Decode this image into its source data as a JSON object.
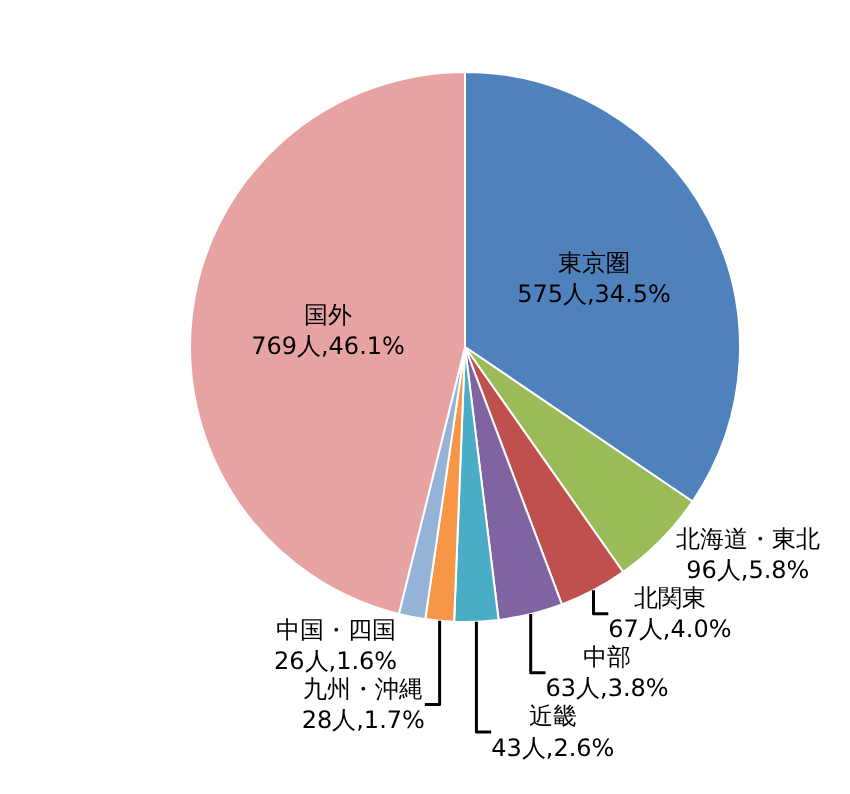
{
  "chart_data": {
    "type": "pie",
    "categories": [
      "東京圏",
      "北海道・東北",
      "北関東",
      "中部",
      "近畿",
      "九州・沖縄",
      "中国・四国",
      "国外"
    ],
    "values": [
      575,
      96,
      67,
      63,
      43,
      28,
      26,
      769
    ],
    "value_labels": [
      "575人,34.5%",
      "96人,5.8%",
      "67人,4.0%",
      "63人,3.8%",
      "43人,2.6%",
      "28人,1.7%",
      "26人,1.6%",
      "769人,46.1%"
    ],
    "colors": [
      "#4f81bd",
      "#9bbb59",
      "#c0504d",
      "#8064a2",
      "#4bacc6",
      "#f79646",
      "#95b3d7",
      "#e6a3a2"
    ],
    "legend": false
  }
}
